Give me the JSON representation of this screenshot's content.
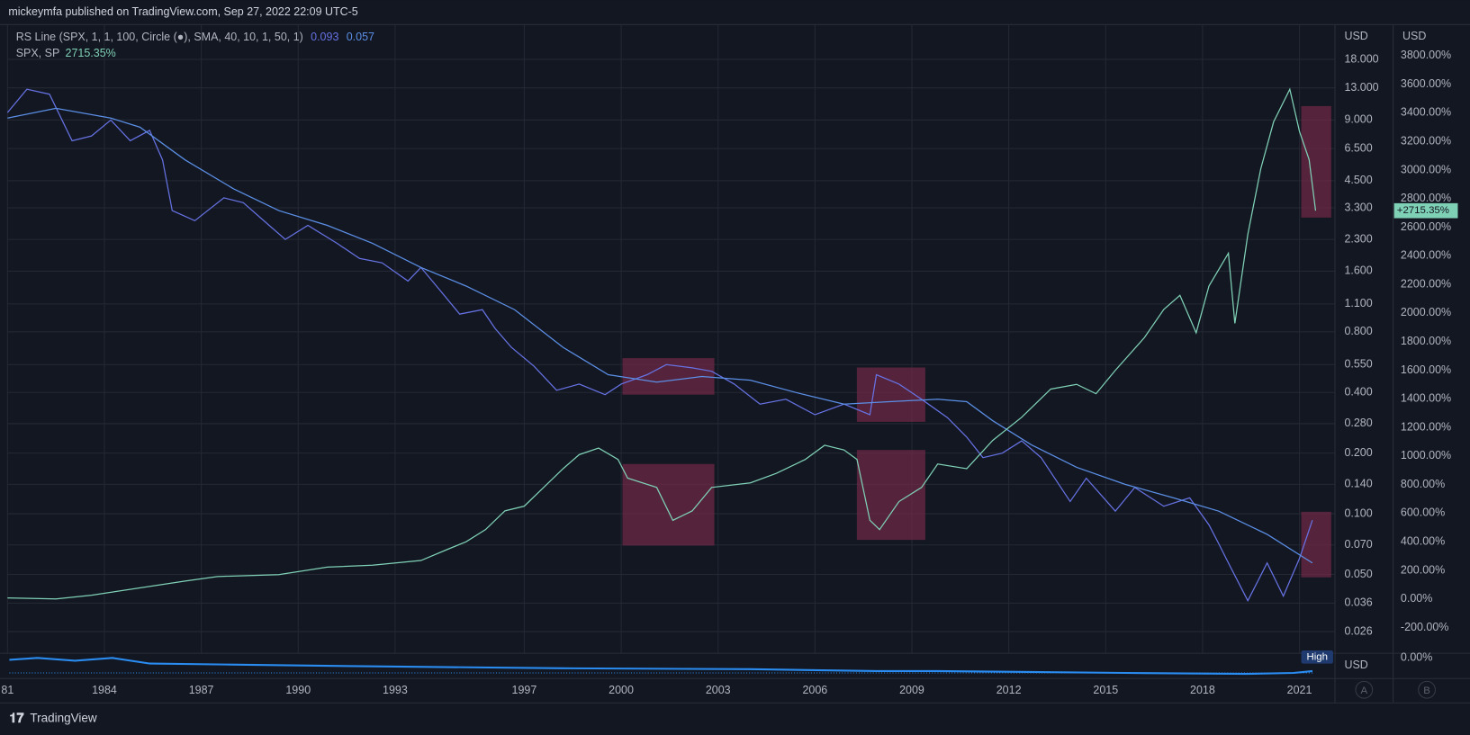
{
  "header": "mickeymfa published on TradingView.com, Sep 27, 2022 22:09 UTC-5",
  "footer": "TradingView",
  "buttons": [
    "A",
    "B"
  ],
  "lower_pane": {
    "tag": "High",
    "unit": "USD",
    "tick": "0.00%"
  },
  "chart_data": {
    "type": "line",
    "log_y": true,
    "grid": true,
    "y_unit": "USD",
    "y2_unit": "USD",
    "price_tag": "+2715.35%",
    "xlim": [
      1981,
      2022.1
    ],
    "xticks": [
      {
        "value": 1981,
        "label": "81"
      },
      1984,
      1987,
      1990,
      1993,
      1997,
      2000,
      2003,
      2006,
      2009,
      2012,
      2015,
      2018,
      2021
    ],
    "ylim": [
      0.0203,
      26.8
    ],
    "yticks": [
      {
        "value": 18,
        "label": "18.000"
      },
      {
        "value": 13,
        "label": "13.000"
      },
      {
        "value": 9,
        "label": "9.000"
      },
      {
        "value": 6.5,
        "label": "6.500"
      },
      {
        "value": 4.5,
        "label": "4.500"
      },
      {
        "value": 3.3,
        "label": "3.300"
      },
      {
        "value": 2.3,
        "label": "2.300"
      },
      {
        "value": 1.6,
        "label": "1.600"
      },
      {
        "value": 1.1,
        "label": "1.100"
      },
      {
        "value": 0.8,
        "label": "0.800"
      },
      {
        "value": 0.55,
        "label": "0.550"
      },
      {
        "value": 0.4,
        "label": "0.400"
      },
      {
        "value": 0.28,
        "label": "0.280"
      },
      {
        "value": 0.2,
        "label": "0.200"
      },
      {
        "value": 0.14,
        "label": "0.140"
      },
      {
        "value": 0.1,
        "label": "0.100"
      },
      {
        "value": 0.07,
        "label": "0.070"
      },
      {
        "value": 0.05,
        "label": "0.050"
      },
      {
        "value": 0.036,
        "label": "0.036"
      },
      {
        "value": 0.026,
        "label": "0.026"
      }
    ],
    "y2lim": [
      -380,
      4017
    ],
    "y2ticks": [
      {
        "value": 3800,
        "label": "3800.00%"
      },
      {
        "value": 3600,
        "label": "3600.00%"
      },
      {
        "value": 3400,
        "label": "3400.00%"
      },
      {
        "value": 3200,
        "label": "3200.00%"
      },
      {
        "value": 3000,
        "label": "3000.00%"
      },
      {
        "value": 2800,
        "label": "2800.00%"
      },
      {
        "value": 2600,
        "label": "2600.00%"
      },
      {
        "value": 2400,
        "label": "2400.00%"
      },
      {
        "value": 2200,
        "label": "2200.00%"
      },
      {
        "value": 2000,
        "label": "2000.00%"
      },
      {
        "value": 1800,
        "label": "1800.00%"
      },
      {
        "value": 1600,
        "label": "1600.00%"
      },
      {
        "value": 1400,
        "label": "1400.00%"
      },
      {
        "value": 1200,
        "label": "1200.00%"
      },
      {
        "value": 1000,
        "label": "1000.00%"
      },
      {
        "value": 800,
        "label": "800.00%"
      },
      {
        "value": 600,
        "label": "600.00%"
      },
      {
        "value": 400,
        "label": "400.00%"
      },
      {
        "value": 200,
        "label": "200.00%"
      },
      {
        "value": 0,
        "label": "0.00%"
      },
      {
        "value": -200,
        "label": "-200.00%"
      }
    ],
    "series": [
      {
        "name": "RS Line (SPX, 1, 1, 100, Circle (●), SMA, 40, 10, 1, 50, 1)",
        "color": "#6672e3",
        "last_value_label": "0.093",
        "x": [
          1981.0,
          1981.6,
          1982.3,
          1983.0,
          1983.6,
          1984.2,
          1984.8,
          1985.4,
          1985.8,
          1986.1,
          1986.8,
          1987.7,
          1988.3,
          1989.1,
          1989.6,
          1990.3,
          1991.2,
          1991.9,
          1992.6,
          1993.4,
          1993.8,
          1994.4,
          1995.0,
          1995.7,
          1996.1,
          1996.6,
          1997.3,
          1998.0,
          1998.7,
          1999.5,
          2000.0,
          2000.8,
          2001.4,
          2002.2,
          2002.8,
          2003.5,
          2004.3,
          2005.1,
          2006.0,
          2006.9,
          2007.7,
          2007.9,
          2008.6,
          2009.3,
          2010.1,
          2010.7,
          2011.2,
          2011.8,
          2012.4,
          2013.0,
          2013.9,
          2014.4,
          2015.3,
          2015.9,
          2016.8,
          2017.6,
          2018.2,
          2018.5,
          2018.8,
          2019.4,
          2020.0,
          2020.5,
          2021.0,
          2021.4
        ],
        "values": [
          9.8,
          12.8,
          12.1,
          7.1,
          7.5,
          9.0,
          7.1,
          8.0,
          5.7,
          3.2,
          2.85,
          3.7,
          3.5,
          2.7,
          2.3,
          2.7,
          2.2,
          1.85,
          1.76,
          1.43,
          1.67,
          1.28,
          0.98,
          1.03,
          0.83,
          0.67,
          0.54,
          0.41,
          0.44,
          0.39,
          0.44,
          0.49,
          0.55,
          0.53,
          0.51,
          0.44,
          0.35,
          0.37,
          0.31,
          0.35,
          0.31,
          0.49,
          0.44,
          0.37,
          0.3,
          0.24,
          0.19,
          0.2,
          0.23,
          0.19,
          0.115,
          0.15,
          0.103,
          0.135,
          0.109,
          0.12,
          0.088,
          0.071,
          0.057,
          0.037,
          0.057,
          0.039,
          0.06,
          0.093
        ]
      },
      {
        "color": "#5b8fe6",
        "last_value_label": "0.057",
        "x": [
          1981.0,
          1982.5,
          1984.2,
          1985.1,
          1986.5,
          1988.0,
          1989.4,
          1990.9,
          1992.3,
          1993.8,
          1995.2,
          1996.7,
          1998.2,
          1999.6,
          2001.1,
          2002.5,
          2004.0,
          2005.4,
          2006.9,
          2008.3,
          2009.8,
          2010.7,
          2011.5,
          2012.7,
          2014.1,
          2015.6,
          2017.1,
          2018.5,
          2020.0,
          2021.4
        ],
        "values": [
          9.2,
          10.3,
          9.2,
          8.3,
          5.7,
          4.1,
          3.2,
          2.7,
          2.2,
          1.67,
          1.35,
          1.03,
          0.67,
          0.49,
          0.45,
          0.48,
          0.46,
          0.4,
          0.35,
          0.36,
          0.37,
          0.36,
          0.29,
          0.22,
          0.17,
          0.14,
          0.12,
          0.103,
          0.079,
          0.057
        ]
      },
      {
        "name": "SPX, SP",
        "color": "#7fd1b6",
        "axis": "y2",
        "last_value_label": "2715.35%",
        "x": [
          1981.0,
          1982.5,
          1983.6,
          1986.5,
          1987.5,
          1989.4,
          1990.9,
          1992.3,
          1993.8,
          1994.7,
          1995.2,
          1995.8,
          1996.4,
          1997.0,
          1997.6,
          1998.2,
          1998.7,
          1999.3,
          1999.9,
          2000.2,
          2001.1,
          2001.6,
          2002.2,
          2002.8,
          2004.0,
          2004.8,
          2005.7,
          2006.3,
          2006.9,
          2007.3,
          2007.7,
          2008.0,
          2008.6,
          2009.3,
          2009.8,
          2010.7,
          2011.5,
          2012.4,
          2013.3,
          2014.1,
          2014.7,
          2015.3,
          2016.2,
          2016.8,
          2017.3,
          2017.8,
          2018.2,
          2018.8,
          2019.0,
          2019.4,
          2019.8,
          2020.2,
          2020.7,
          2021.0,
          2021.3,
          2021.5
        ],
        "values": [
          7,
          0,
          26,
          125,
          157,
          170,
          223,
          236,
          269,
          354,
          400,
          485,
          616,
          649,
          780,
          911,
          1009,
          1055,
          976,
          845,
          780,
          550,
          616,
          780,
          812,
          878,
          976,
          1075,
          1042,
          976,
          550,
          485,
          681,
          780,
          944,
          911,
          1108,
          1271,
          1468,
          1501,
          1435,
          1599,
          1828,
          2025,
          2123,
          1861,
          2189,
          2418,
          1927,
          2549,
          3008,
          3336,
          3565,
          3270,
          3073,
          2715.35
        ]
      }
    ]
  }
}
